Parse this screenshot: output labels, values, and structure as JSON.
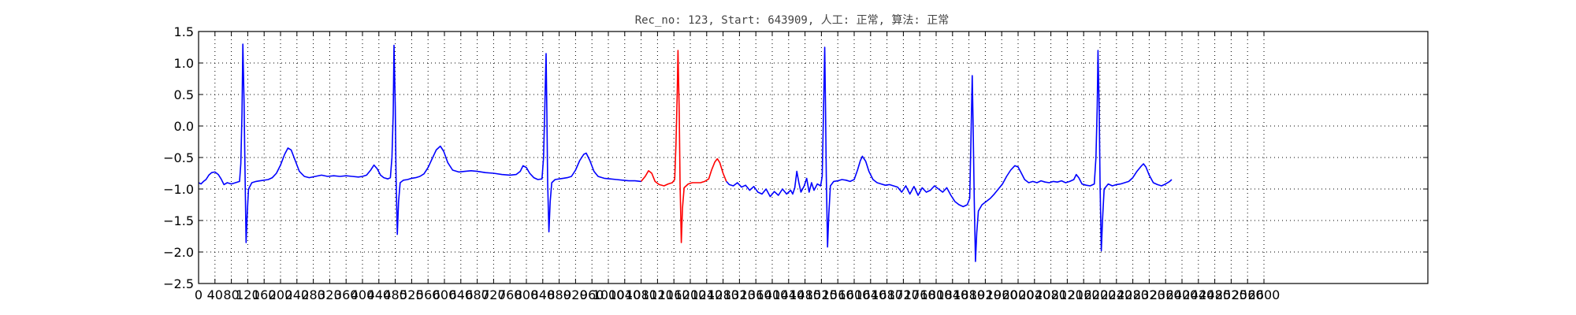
{
  "chart_data": {
    "type": "line",
    "title": "Rec_no: 123, Start: 643909, 人工: 正常, 算法: 正常",
    "xlabel": "",
    "ylabel": "",
    "xlim": [
      0,
      3000
    ],
    "ylim": [
      -2.5,
      1.5
    ],
    "grid": true,
    "y_ticks": [
      "1.5",
      "1.0",
      "0.5",
      "0.0",
      "−0.5",
      "−1.0",
      "−1.5",
      "−2.0",
      "−2.5"
    ],
    "y_tick_values": [
      1.5,
      1.0,
      0.5,
      0.0,
      -0.5,
      -1.0,
      -1.5,
      -2.0,
      -2.5
    ],
    "x_ticks": [
      "0",
      "40",
      "80",
      "120",
      "160",
      "200",
      "240",
      "280",
      "320",
      "360",
      "400",
      "440",
      "480",
      "520",
      "560",
      "600",
      "640",
      "680",
      "720",
      "760",
      "800",
      "840",
      "880",
      "920",
      "960",
      "1000",
      "1040",
      "1080",
      "1120",
      "1160",
      "1200",
      "1240",
      "1280",
      "1320",
      "1360",
      "1400",
      "1440",
      "1480",
      "1520",
      "1560",
      "1600",
      "1640",
      "1680",
      "1720",
      "1760",
      "1800",
      "1840",
      "1880",
      "1920",
      "1960",
      "2000",
      "2040",
      "2080",
      "2120",
      "2160",
      "2200",
      "2240",
      "2280",
      "2320",
      "2360",
      "2400",
      "2440",
      "2480",
      "2520",
      "2560",
      "2600"
    ],
    "x_tick_values": [
      0,
      40,
      80,
      120,
      160,
      200,
      240,
      280,
      320,
      360,
      400,
      440,
      480,
      520,
      560,
      600,
      640,
      680,
      720,
      760,
      800,
      840,
      880,
      920,
      960,
      1000,
      1040,
      1080,
      1120,
      1160,
      1200,
      1240,
      1280,
      1320,
      1360,
      1400,
      1440,
      1480,
      1520,
      1560,
      1600,
      1640,
      1680,
      1720,
      1760,
      1800,
      1840,
      1880,
      1920,
      1960,
      2000,
      2040,
      2080,
      2120,
      2160,
      2200,
      2240,
      2280,
      2320,
      2360,
      2400,
      2440,
      2480,
      2520,
      2560,
      2600
    ],
    "series": [
      {
        "color": "#0000ff",
        "points": [
          [
            0,
            -0.9
          ],
          [
            6,
            -0.92
          ],
          [
            12,
            -0.88
          ],
          [
            18,
            -0.85
          ],
          [
            25,
            -0.78
          ],
          [
            32,
            -0.74
          ],
          [
            40,
            -0.73
          ],
          [
            48,
            -0.77
          ],
          [
            55,
            -0.84
          ],
          [
            62,
            -0.93
          ],
          [
            70,
            -0.9
          ],
          [
            80,
            -0.92
          ],
          [
            90,
            -0.9
          ],
          [
            100,
            -0.88
          ],
          [
            103,
            -0.6
          ],
          [
            106,
            0.2
          ],
          [
            108,
            1.3
          ],
          [
            111,
            0.4
          ],
          [
            113,
            -0.6
          ],
          [
            116,
            -1.85
          ],
          [
            119,
            -1.35
          ],
          [
            122,
            -1.0
          ],
          [
            130,
            -0.9
          ],
          [
            140,
            -0.88
          ],
          [
            150,
            -0.87
          ],
          [
            160,
            -0.86
          ],
          [
            170,
            -0.85
          ],
          [
            180,
            -0.82
          ],
          [
            190,
            -0.75
          ],
          [
            200,
            -0.62
          ],
          [
            210,
            -0.45
          ],
          [
            218,
            -0.35
          ],
          [
            226,
            -0.38
          ],
          [
            236,
            -0.55
          ],
          [
            246,
            -0.72
          ],
          [
            258,
            -0.8
          ],
          [
            270,
            -0.82
          ],
          [
            285,
            -0.8
          ],
          [
            300,
            -0.78
          ],
          [
            315,
            -0.8
          ],
          [
            330,
            -0.79
          ],
          [
            345,
            -0.8
          ],
          [
            360,
            -0.79
          ],
          [
            375,
            -0.8
          ],
          [
            390,
            -0.81
          ],
          [
            400,
            -0.8
          ],
          [
            410,
            -0.78
          ],
          [
            420,
            -0.7
          ],
          [
            428,
            -0.62
          ],
          [
            436,
            -0.68
          ],
          [
            444,
            -0.78
          ],
          [
            452,
            -0.82
          ],
          [
            462,
            -0.84
          ],
          [
            468,
            -0.82
          ],
          [
            472,
            -0.5
          ],
          [
            475,
            0.2
          ],
          [
            477,
            1.28
          ],
          [
            480,
            0.3
          ],
          [
            482,
            -0.8
          ],
          [
            485,
            -1.72
          ],
          [
            488,
            -1.2
          ],
          [
            492,
            -0.9
          ],
          [
            500,
            -0.86
          ],
          [
            510,
            -0.85
          ],
          [
            520,
            -0.83
          ],
          [
            530,
            -0.82
          ],
          [
            540,
            -0.8
          ],
          [
            550,
            -0.76
          ],
          [
            560,
            -0.66
          ],
          [
            570,
            -0.52
          ],
          [
            580,
            -0.38
          ],
          [
            590,
            -0.32
          ],
          [
            598,
            -0.4
          ],
          [
            608,
            -0.58
          ],
          [
            620,
            -0.7
          ],
          [
            635,
            -0.73
          ],
          [
            650,
            -0.72
          ],
          [
            665,
            -0.71
          ],
          [
            680,
            -0.72
          ],
          [
            700,
            -0.74
          ],
          [
            720,
            -0.75
          ],
          [
            740,
            -0.77
          ],
          [
            760,
            -0.78
          ],
          [
            775,
            -0.77
          ],
          [
            785,
            -0.72
          ],
          [
            792,
            -0.63
          ],
          [
            800,
            -0.66
          ],
          [
            808,
            -0.75
          ],
          [
            818,
            -0.82
          ],
          [
            828,
            -0.85
          ],
          [
            838,
            -0.84
          ],
          [
            842,
            -0.5
          ],
          [
            845,
            0.3
          ],
          [
            848,
            1.15
          ],
          [
            850,
            0.2
          ],
          [
            852,
            -0.9
          ],
          [
            855,
            -1.68
          ],
          [
            858,
            -1.2
          ],
          [
            862,
            -0.9
          ],
          [
            870,
            -0.85
          ],
          [
            880,
            -0.84
          ],
          [
            890,
            -0.83
          ],
          [
            900,
            -0.82
          ],
          [
            910,
            -0.8
          ],
          [
            920,
            -0.7
          ],
          [
            930,
            -0.55
          ],
          [
            940,
            -0.45
          ],
          [
            946,
            -0.43
          ],
          [
            955,
            -0.55
          ],
          [
            965,
            -0.72
          ],
          [
            975,
            -0.8
          ],
          [
            990,
            -0.83
          ],
          [
            1005,
            -0.84
          ],
          [
            1020,
            -0.85
          ],
          [
            1035,
            -0.86
          ],
          [
            1050,
            -0.87
          ],
          [
            1065,
            -0.87
          ],
          [
            1080,
            -0.88
          ]
        ]
      },
      {
        "color": "#ff0000",
        "points": [
          [
            1080,
            -0.88
          ],
          [
            1090,
            -0.8
          ],
          [
            1098,
            -0.71
          ],
          [
            1106,
            -0.75
          ],
          [
            1114,
            -0.88
          ],
          [
            1124,
            -0.93
          ],
          [
            1136,
            -0.95
          ],
          [
            1146,
            -0.92
          ],
          [
            1156,
            -0.9
          ],
          [
            1162,
            -0.85
          ],
          [
            1165,
            -0.3
          ],
          [
            1168,
            0.5
          ],
          [
            1170,
            1.2
          ],
          [
            1173,
            0.2
          ],
          [
            1175,
            -0.9
          ],
          [
            1178,
            -1.85
          ],
          [
            1181,
            -1.3
          ],
          [
            1185,
            -0.98
          ],
          [
            1195,
            -0.92
          ],
          [
            1205,
            -0.9
          ],
          [
            1215,
            -0.9
          ],
          [
            1225,
            -0.9
          ],
          [
            1235,
            -0.88
          ],
          [
            1245,
            -0.84
          ],
          [
            1252,
            -0.7
          ],
          [
            1260,
            -0.57
          ],
          [
            1266,
            -0.52
          ],
          [
            1272,
            -0.58
          ],
          [
            1280,
            -0.75
          ],
          [
            1288,
            -0.88
          ]
        ]
      },
      {
        "color": "#0000ff",
        "points": [
          [
            1288,
            -0.88
          ],
          [
            1295,
            -0.93
          ],
          [
            1305,
            -0.95
          ],
          [
            1315,
            -0.9
          ],
          [
            1325,
            -0.97
          ],
          [
            1335,
            -0.94
          ],
          [
            1345,
            -1.02
          ],
          [
            1355,
            -0.96
          ],
          [
            1365,
            -1.05
          ],
          [
            1375,
            -1.08
          ],
          [
            1385,
            -1.0
          ],
          [
            1395,
            -1.12
          ],
          [
            1405,
            -1.04
          ],
          [
            1415,
            -1.1
          ],
          [
            1425,
            -1.0
          ],
          [
            1435,
            -1.08
          ],
          [
            1445,
            -1.02
          ],
          [
            1450,
            -1.08
          ],
          [
            1455,
            -0.98
          ],
          [
            1460,
            -0.72
          ],
          [
            1465,
            -0.9
          ],
          [
            1470,
            -1.05
          ],
          [
            1478,
            -0.95
          ],
          [
            1484,
            -0.83
          ],
          [
            1490,
            -1.05
          ],
          [
            1496,
            -0.9
          ],
          [
            1502,
            -1.02
          ],
          [
            1510,
            -0.92
          ],
          [
            1518,
            -0.95
          ],
          [
            1522,
            -0.8
          ],
          [
            1525,
            0.2
          ],
          [
            1528,
            1.25
          ],
          [
            1530,
            0.3
          ],
          [
            1532,
            -0.8
          ],
          [
            1535,
            -1.92
          ],
          [
            1538,
            -1.4
          ],
          [
            1542,
            -0.95
          ],
          [
            1550,
            -0.88
          ],
          [
            1560,
            -0.87
          ],
          [
            1570,
            -0.85
          ],
          [
            1580,
            -0.86
          ],
          [
            1590,
            -0.88
          ],
          [
            1600,
            -0.85
          ],
          [
            1608,
            -0.7
          ],
          [
            1615,
            -0.55
          ],
          [
            1620,
            -0.48
          ],
          [
            1628,
            -0.56
          ],
          [
            1636,
            -0.72
          ],
          [
            1646,
            -0.85
          ],
          [
            1656,
            -0.9
          ],
          [
            1666,
            -0.92
          ],
          [
            1676,
            -0.94
          ],
          [
            1686,
            -0.93
          ],
          [
            1696,
            -0.95
          ],
          [
            1706,
            -0.97
          ],
          [
            1716,
            -1.05
          ],
          [
            1726,
            -0.95
          ],
          [
            1736,
            -1.08
          ],
          [
            1746,
            -0.96
          ],
          [
            1756,
            -1.1
          ],
          [
            1766,
            -0.98
          ],
          [
            1776,
            -1.05
          ],
          [
            1786,
            -1.02
          ],
          [
            1796,
            -0.95
          ],
          [
            1806,
            -1.0
          ],
          [
            1816,
            -1.05
          ],
          [
            1826,
            -0.98
          ],
          [
            1836,
            -1.1
          ],
          [
            1846,
            -1.2
          ],
          [
            1856,
            -1.25
          ],
          [
            1866,
            -1.28
          ],
          [
            1876,
            -1.25
          ],
          [
            1882,
            -1.15
          ],
          [
            1885,
            -0.2
          ],
          [
            1888,
            0.8
          ],
          [
            1890,
            0.1
          ],
          [
            1893,
            -1.2
          ],
          [
            1896,
            -2.15
          ],
          [
            1899,
            -1.7
          ],
          [
            1903,
            -1.35
          ],
          [
            1912,
            -1.25
          ],
          [
            1922,
            -1.2
          ],
          [
            1932,
            -1.15
          ],
          [
            1942,
            -1.08
          ],
          [
            1952,
            -1.0
          ],
          [
            1962,
            -0.92
          ],
          [
            1972,
            -0.8
          ],
          [
            1982,
            -0.7
          ],
          [
            1992,
            -0.63
          ],
          [
            2000,
            -0.65
          ],
          [
            2008,
            -0.75
          ],
          [
            2016,
            -0.85
          ],
          [
            2026,
            -0.9
          ],
          [
            2036,
            -0.88
          ],
          [
            2046,
            -0.9
          ],
          [
            2056,
            -0.87
          ],
          [
            2066,
            -0.89
          ],
          [
            2076,
            -0.9
          ],
          [
            2086,
            -0.88
          ],
          [
            2096,
            -0.89
          ],
          [
            2106,
            -0.87
          ],
          [
            2116,
            -0.9
          ],
          [
            2126,
            -0.88
          ],
          [
            2136,
            -0.85
          ],
          [
            2142,
            -0.77
          ],
          [
            2148,
            -0.82
          ],
          [
            2156,
            -0.92
          ],
          [
            2166,
            -0.94
          ],
          [
            2176,
            -0.95
          ],
          [
            2186,
            -0.92
          ],
          [
            2190,
            -0.5
          ],
          [
            2193,
            0.3
          ],
          [
            2195,
            1.2
          ],
          [
            2198,
            0.2
          ],
          [
            2200,
            -0.9
          ],
          [
            2203,
            -1.98
          ],
          [
            2206,
            -1.5
          ],
          [
            2210,
            -1.0
          ],
          [
            2220,
            -0.92
          ],
          [
            2230,
            -0.95
          ],
          [
            2240,
            -0.93
          ],
          [
            2250,
            -0.92
          ],
          [
            2260,
            -0.9
          ],
          [
            2270,
            -0.88
          ],
          [
            2280,
            -0.82
          ],
          [
            2290,
            -0.72
          ],
          [
            2300,
            -0.64
          ],
          [
            2306,
            -0.6
          ],
          [
            2312,
            -0.65
          ],
          [
            2320,
            -0.78
          ],
          [
            2330,
            -0.9
          ],
          [
            2340,
            -0.93
          ],
          [
            2350,
            -0.95
          ],
          [
            2360,
            -0.92
          ],
          [
            2370,
            -0.88
          ],
          [
            2375,
            -0.85
          ]
        ]
      }
    ]
  }
}
